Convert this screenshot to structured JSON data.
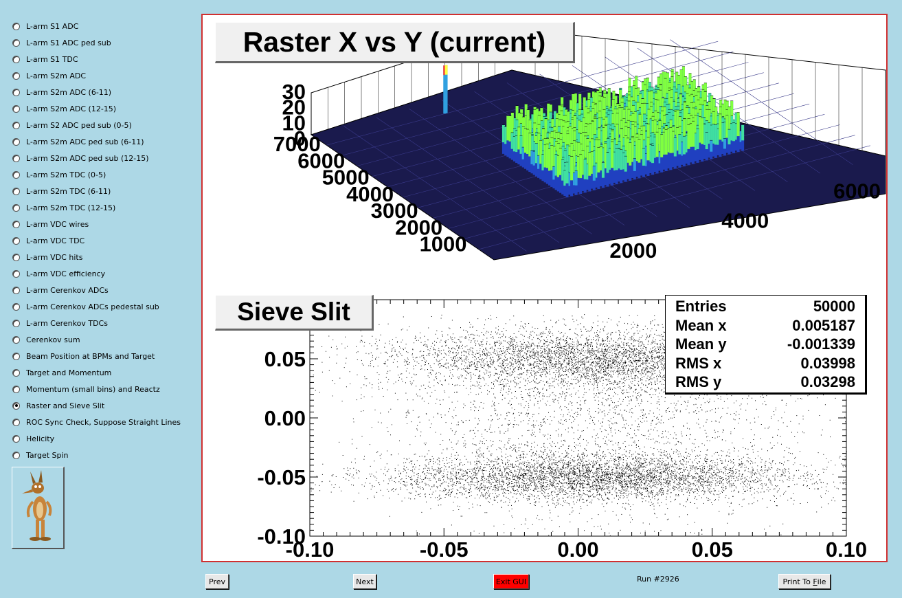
{
  "sidebar": {
    "items": [
      {
        "label": "L-arm S1 ADC",
        "checked": false
      },
      {
        "label": "L-arm S1 ADC ped sub",
        "checked": false
      },
      {
        "label": "L-arm S1 TDC",
        "checked": false
      },
      {
        "label": "L-arm S2m ADC",
        "checked": false
      },
      {
        "label": "L-arm S2m ADC (6-11)",
        "checked": false
      },
      {
        "label": "L-arm S2m ADC (12-15)",
        "checked": false
      },
      {
        "label": "L-arm S2 ADC ped sub (0-5)",
        "checked": false
      },
      {
        "label": "L-arm S2m ADC ped sub (6-11)",
        "checked": false
      },
      {
        "label": "L-arm S2m ADC ped sub (12-15)",
        "checked": false
      },
      {
        "label": "L-arm S2m TDC (0-5)",
        "checked": false
      },
      {
        "label": "L-arm S2m TDC (6-11)",
        "checked": false
      },
      {
        "label": "L-arm S2m TDC (12-15)",
        "checked": false
      },
      {
        "label": "L-arm VDC wires",
        "checked": false
      },
      {
        "label": "L-arm VDC TDC",
        "checked": false
      },
      {
        "label": "L-arm VDC hits",
        "checked": false
      },
      {
        "label": "L-arm VDC efficiency",
        "checked": false
      },
      {
        "label": "L-arm Cerenkov ADCs",
        "checked": false
      },
      {
        "label": "L-arm Cerenkov ADCs pedestal sub",
        "checked": false
      },
      {
        "label": "L-arm Cerenkov TDCs",
        "checked": false
      },
      {
        "label": "Cerenkov sum",
        "checked": false
      },
      {
        "label": "Beam Position at BPMs and Target",
        "checked": false
      },
      {
        "label": "Target and Momentum",
        "checked": false
      },
      {
        "label": "Momentum (small bins) and Reactz",
        "checked": false
      },
      {
        "label": "Raster and Sieve Slit",
        "checked": true
      },
      {
        "label": "ROC Sync Check, Suppose Straight Lines",
        "checked": false
      },
      {
        "label": "Helicity",
        "checked": false
      },
      {
        "label": "Target Spin",
        "checked": false
      }
    ],
    "mascot_icon": "wile-e-coyote-icon"
  },
  "canvas": {
    "top_title": "Raster X vs Y (current)",
    "bottom_title": "Sieve Slit",
    "stats": [
      {
        "name": "Entries",
        "value": "50000"
      },
      {
        "name": "Mean x",
        "value": "0.005187"
      },
      {
        "name": "Mean y",
        "value": "-0.001339"
      },
      {
        "name": "RMS x",
        "value": "0.03998"
      },
      {
        "name": "RMS y",
        "value": "0.03298"
      }
    ],
    "frame_color": "#d03030"
  },
  "chart_data": [
    {
      "type": "lego3d",
      "title": "Raster X vs Y (current)",
      "x_ticks": [
        "2000",
        "4000",
        "6000"
      ],
      "y_ticks": [
        "1000",
        "2000",
        "3000",
        "4000",
        "5000",
        "6000",
        "7000"
      ],
      "z_ticks": [
        "0",
        "10",
        "20",
        "30"
      ],
      "xlim": [
        0,
        7000
      ],
      "ylim": [
        0,
        7500
      ],
      "zlim": [
        0,
        30
      ],
      "colors": [
        "#1a1a4d",
        "#2040c0",
        "#30a0e0",
        "#40e0a0",
        "#80ff40"
      ]
    },
    {
      "type": "scatter",
      "title": "Sieve Slit",
      "xlim": [
        -0.1,
        0.1
      ],
      "ylim": [
        -0.1,
        0.1
      ],
      "x_ticks": [
        "-0.10",
        "-0.05",
        "0.00",
        "0.05",
        "0.10"
      ],
      "y_ticks": [
        "-0.10",
        "-0.05",
        "0.00",
        "0.05"
      ],
      "entries": 50000,
      "mean_x": 0.005187,
      "mean_y": -0.001339,
      "rms_x": 0.03998,
      "rms_y": 0.03298
    }
  ],
  "buttons": {
    "prev": "Prev",
    "next": "Next",
    "exit": "Exit GUI",
    "print_prefix": "Print To ",
    "print_accel": "F",
    "print_suffix": "ile",
    "exit_color": "#ff0000"
  },
  "status": {
    "run": "Run #2926"
  }
}
